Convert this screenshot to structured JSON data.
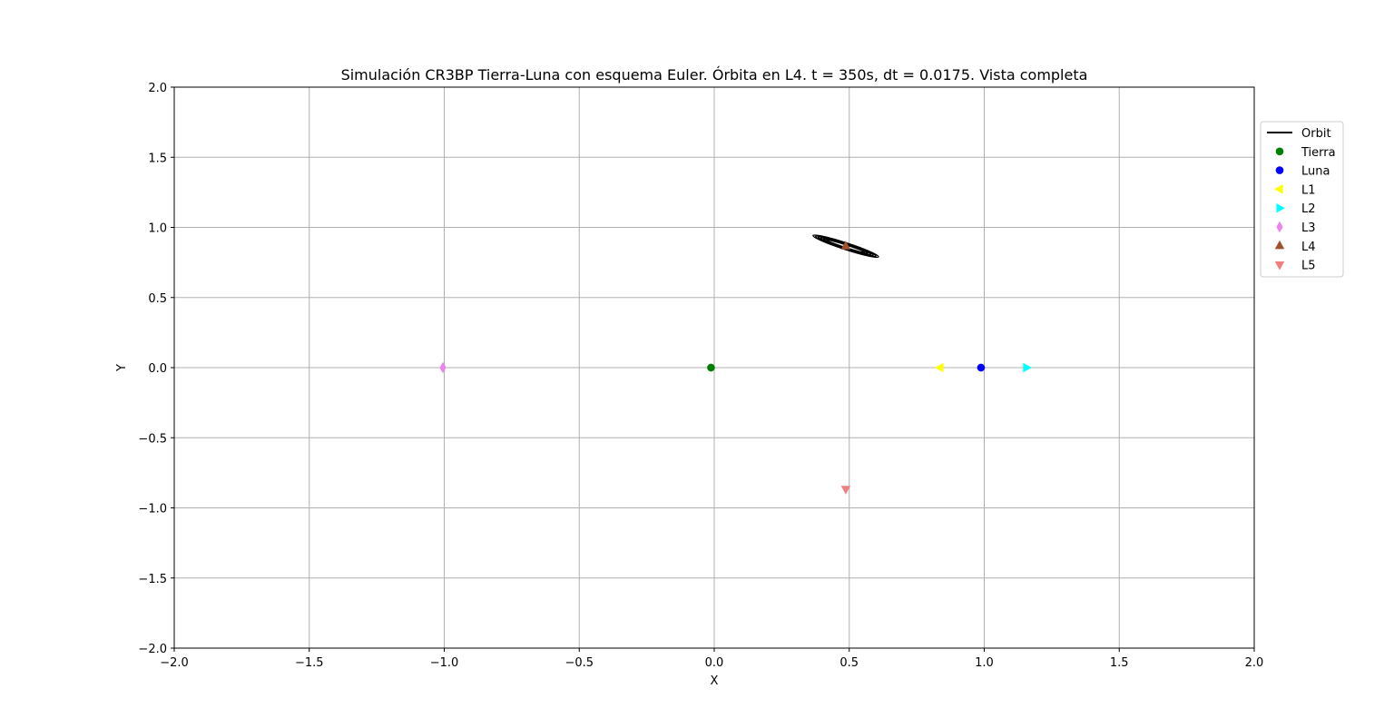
{
  "chart_data": {
    "type": "scatter",
    "title": "Simulación CR3BP Tierra-Luna con esquema Euler. Órbita en L4. t = 350s, dt = 0.0175. Vista completa",
    "xlabel": "X",
    "ylabel": "Y",
    "xlim": [
      -2.0,
      2.0
    ],
    "ylim": [
      -2.0,
      2.0
    ],
    "xticks": [
      -2.0,
      -1.5,
      -1.0,
      -0.5,
      0.0,
      0.5,
      1.0,
      1.5,
      2.0
    ],
    "yticks": [
      -2.0,
      -1.5,
      -1.0,
      -0.5,
      0.0,
      0.5,
      1.0,
      1.5,
      2.0
    ],
    "xtick_labels": [
      "−2.0",
      "−1.5",
      "−1.0",
      "−0.5",
      "0.0",
      "0.5",
      "1.0",
      "1.5",
      "2.0"
    ],
    "ytick_labels": [
      "−2.0",
      "−1.5",
      "−1.0",
      "−0.5",
      "0.0",
      "0.5",
      "1.0",
      "1.5",
      "2.0"
    ],
    "grid": true,
    "legend_placement": "outside-right",
    "orbit": {
      "name": "Orbit",
      "color": "#000000",
      "center": [
        0.487,
        0.866
      ],
      "loops": [
        {
          "a": 0.255,
          "b": 0.024
        },
        {
          "a": 0.235,
          "b": 0.021
        },
        {
          "a": 0.215,
          "b": 0.018
        },
        {
          "a": 0.195,
          "b": 0.015
        },
        {
          "a": 0.172,
          "b": 0.012
        },
        {
          "a": 0.148,
          "b": 0.009
        }
      ],
      "tilt_deg": -18
    },
    "points": [
      {
        "name": "Tierra",
        "x": -0.012,
        "y": 0.0,
        "marker": "circle",
        "color": "#008000"
      },
      {
        "name": "Luna",
        "x": 0.988,
        "y": 0.0,
        "marker": "circle",
        "color": "#0000ff"
      },
      {
        "name": "L1",
        "x": 0.837,
        "y": 0.0,
        "marker": "triangle-left",
        "color": "#ffff00"
      },
      {
        "name": "L2",
        "x": 1.156,
        "y": 0.0,
        "marker": "triangle-right",
        "color": "#00ffff"
      },
      {
        "name": "L3",
        "x": -1.005,
        "y": 0.0,
        "marker": "diamond",
        "color": "#ee82ee"
      },
      {
        "name": "L4",
        "x": 0.487,
        "y": 0.866,
        "marker": "triangle-up",
        "color": "#a0522d"
      },
      {
        "name": "L5",
        "x": 0.487,
        "y": -0.866,
        "marker": "triangle-down",
        "color": "#f08080"
      }
    ],
    "legend": [
      "Orbit",
      "Tierra",
      "Luna",
      "L1",
      "L2",
      "L3",
      "L4",
      "L5"
    ]
  }
}
